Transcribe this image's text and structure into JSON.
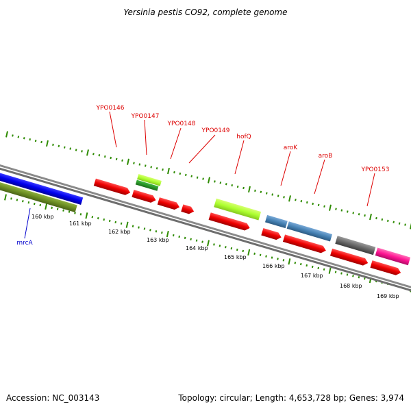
{
  "title": "Yersinia pestis CO92, complete genome",
  "footer": {
    "accession": "Accession: NC_003143",
    "topology": "Topology: circular; Length: 4,653,728 bp; Genes: 3,974"
  },
  "colors": {
    "backbone": "#8a8a8a",
    "ticks": "#2e8b00",
    "label_red": "#dd0000",
    "label_blue": "#0000cc"
  },
  "scale_labels": [
    "160 kbp",
    "161 kbp",
    "162 kbp",
    "163 kbp",
    "164 kbp",
    "165 kbp",
    "166 kbp",
    "167 kbp",
    "168 kbp",
    "169 kbp"
  ],
  "gene_labels": [
    {
      "name": "YPO0146",
      "color": "#dd0000"
    },
    {
      "name": "YPO0147",
      "color": "#dd0000"
    },
    {
      "name": "YPO0148",
      "color": "#dd0000"
    },
    {
      "name": "YPO0149",
      "color": "#dd0000"
    },
    {
      "name": "hofQ",
      "color": "#dd0000"
    },
    {
      "name": "aroK",
      "color": "#dd0000"
    },
    {
      "name": "aroB",
      "color": "#dd0000"
    },
    {
      "name": "YPO0153",
      "color": "#dd0000"
    },
    {
      "name": "mrcA",
      "color": "#0000cc"
    }
  ],
  "feature_colors": [
    "#0000ee",
    "#6b8e23",
    "#ee0000",
    "#adff2f",
    "#228b22",
    "#4682b4",
    "#696969",
    "#ff1493"
  ]
}
